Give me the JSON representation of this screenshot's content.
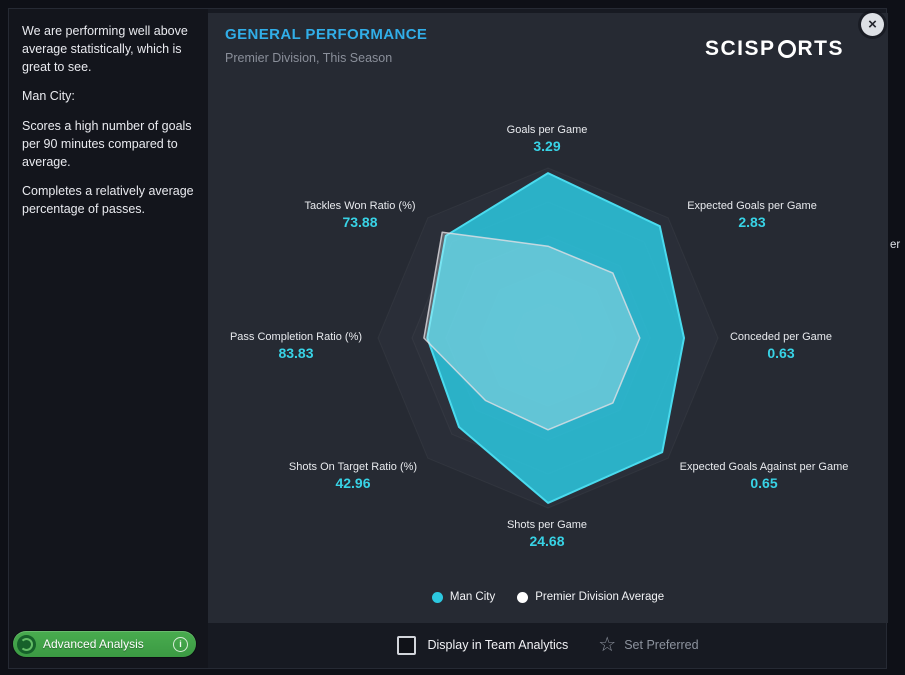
{
  "window": {
    "close_icon": "×",
    "edge_fragment": "er"
  },
  "sidebar": {
    "paragraphs": [
      "We are performing well above average statistically, which is great to see.",
      "Man City:",
      "Scores a high number of goals per 90 minutes compared to average.",
      "Completes a relatively average percentage of passes."
    ],
    "advanced_analysis": {
      "label": "Advanced Analysis",
      "info_icon": "i"
    }
  },
  "panel": {
    "title": "GENERAL PERFORMANCE",
    "subtitle": "Premier Division, This Season",
    "logo": {
      "left": "SCISP",
      "right": "RTS"
    }
  },
  "chart_data": {
    "type": "radar",
    "title": "General Performance",
    "axes": [
      {
        "label": "Goals per Game",
        "value": "3.29"
      },
      {
        "label": "Expected Goals per Game",
        "value": "2.83"
      },
      {
        "label": "Conceded per Game",
        "value": "0.63"
      },
      {
        "label": "Expected Goals Against per Game",
        "value": "0.65"
      },
      {
        "label": "Shots per Game",
        "value": "24.68"
      },
      {
        "label": "Shots On Target Ratio (%)",
        "value": "42.96"
      },
      {
        "label": "Pass Completion Ratio (%)",
        "value": "83.83"
      },
      {
        "label": "Tackles Won Ratio (%)",
        "value": "73.88"
      }
    ],
    "series": [
      {
        "name": "Man City",
        "color": "#2cc8e0",
        "values": [
          3.29,
          2.83,
          0.63,
          0.65,
          24.68,
          42.96,
          83.83,
          73.88
        ],
        "normalized": [
          0.97,
          0.93,
          0.8,
          0.95,
          0.97,
          0.74,
          0.71,
          0.85
        ]
      },
      {
        "name": "Premier Division Average",
        "color": "#ffffff",
        "normalized": [
          0.54,
          0.54,
          0.54,
          0.54,
          0.54,
          0.52,
          0.73,
          0.88
        ]
      }
    ],
    "grid_rings": [
      1.0,
      0.8,
      0.6,
      0.4,
      0.2
    ],
    "legend_position": "bottom"
  },
  "footer": {
    "team_analytics_label": "Display in Team Analytics",
    "set_preferred_label": "Set Preferred",
    "star_icon": "☆"
  }
}
